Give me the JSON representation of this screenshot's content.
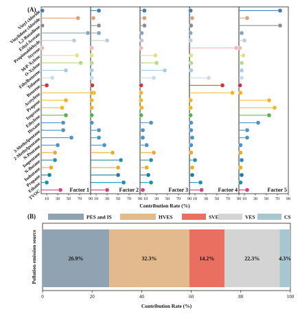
{
  "panel_a_label": "(A)",
  "panel_b_label": "(B)",
  "chart_data": [
    {
      "type": "lollipop",
      "xlabel": "Contribution Rate (%)",
      "xlim": [
        0,
        90
      ],
      "xticks": [
        10,
        30,
        50,
        70,
        90
      ],
      "categories": [
        "Vinyl chloride",
        "Vinylidene chloride",
        "1,2-Butadiene",
        "Ethyl Acetate",
        "Propionaldehyde",
        "Styrene",
        "M/P-Xylene",
        "O-Xylene",
        "Ethylbenzene",
        "Toluene",
        "Benzene",
        "Acetylene",
        "Propene",
        "Isoprene",
        "Ethylene",
        "Hexane",
        "3-Methylpentane",
        "2-Methylpentane",
        "N-Pentane",
        "Isopentane",
        "N-Butane",
        "Isobutane",
        "Propane",
        "Ethane",
        "TVOC"
      ],
      "colors": [
        "#3e7fb6",
        "#d9a37a",
        "#8a8f8c",
        "#8aa3b6",
        "#bfcbd3",
        "#f4b9b7",
        "#e6e08a",
        "#b5d98f",
        "#a9cde9",
        "#c3ddef",
        "#c43a3a",
        "#f2b51f",
        "#f2b51f",
        "#f2b51f",
        "#57b34d",
        "#4c93c8",
        "#4c93c8",
        "#4c93c8",
        "#4c93c8",
        "#e6ad2a",
        "#2a8da6",
        "#e6ad2a",
        "#1f7f9c",
        "#1f8fb5",
        "#c94a7e"
      ],
      "series": [
        {
          "name": "Factor 1",
          "values": [
            2,
            67,
            2,
            85,
            60,
            2,
            65,
            72,
            45,
            20,
            10,
            96,
            45,
            38,
            45,
            40,
            40,
            55,
            30,
            25,
            25,
            18,
            15,
            10,
            35
          ]
        },
        {
          "name": "Factor 2",
          "values": [
            15,
            5,
            15,
            15,
            30,
            2,
            2,
            2,
            2,
            2,
            3,
            2,
            2,
            2,
            2,
            2,
            15,
            15,
            25,
            40,
            55,
            50,
            50,
            60,
            30
          ]
        },
        {
          "name": "Factor 3",
          "values": [
            8,
            8,
            8,
            3,
            3,
            2,
            28,
            30,
            45,
            25,
            2,
            2,
            2,
            3,
            2,
            20,
            5,
            5,
            12,
            25,
            20,
            12,
            15,
            20,
            5
          ]
        },
        {
          "name": "Factor 4",
          "values": [
            2,
            5,
            3,
            2,
            2,
            85,
            3,
            3,
            3,
            35,
            60,
            78,
            2,
            2,
            2,
            3,
            3,
            5,
            3,
            3,
            10,
            5,
            5,
            20,
            22
          ]
        },
        {
          "name": "Factor 5",
          "values": [
            75,
            15,
            75,
            5,
            10,
            2,
            8,
            5,
            5,
            5,
            2,
            3,
            55,
            65,
            55,
            35,
            15,
            15,
            3,
            3,
            5,
            3,
            5,
            3,
            15
          ]
        }
      ]
    },
    {
      "type": "bar",
      "orientation": "horizontal",
      "stacked": true,
      "ylabel": "Pollution emission source",
      "xlabel": "Contribution Rate (%)",
      "xlim": [
        0,
        100
      ],
      "xticks": [
        0,
        20,
        40,
        60,
        80,
        100
      ],
      "series": [
        {
          "name": "PES and IS",
          "value": 26.9,
          "label": "26.9%",
          "color": "#8fa3b2"
        },
        {
          "name": "HVES",
          "value": 32.3,
          "label": "32.3%",
          "color": "#e3b98e"
        },
        {
          "name": "SVES",
          "value": 14.2,
          "label": "14.2%",
          "color": "#ea6f60"
        },
        {
          "name": "VES",
          "value": 22.3,
          "label": "22.3%",
          "color": "#d4d4d4"
        },
        {
          "name": "CS",
          "value": 4.3,
          "label": "4.3%",
          "color": "#a7c7d0"
        }
      ]
    }
  ]
}
